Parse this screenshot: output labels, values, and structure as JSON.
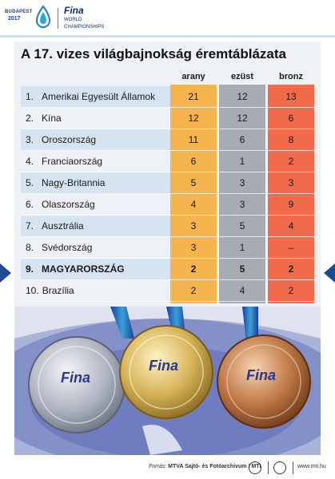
{
  "header": {
    "budapest_text": "BUDAPEST",
    "year_text": "2017",
    "fina_text": "Fina",
    "championships_line1": "WORLD",
    "championships_line2": "CHAMPIONSHIPS"
  },
  "title": "A 17. vizes világbajnokság éremtáblázata",
  "columns": {
    "gold": "arany",
    "silver": "ezüst",
    "bronze": "bronz"
  },
  "colors": {
    "gold": "#f6b44f",
    "silver": "#a7acb2",
    "bronze": "#f06a4b",
    "stripe": "#d6e4f1",
    "accent": "#1c4b93"
  },
  "rows": [
    {
      "rank": "1.",
      "country": "Amerikai Egyesült Államok",
      "gold": "21",
      "silver": "12",
      "bronze": "13"
    },
    {
      "rank": "2.",
      "country": "Kína",
      "gold": "12",
      "silver": "12",
      "bronze": "6"
    },
    {
      "rank": "3.",
      "country": "Oroszország",
      "gold": "11",
      "silver": "6",
      "bronze": "8"
    },
    {
      "rank": "4.",
      "country": "Franciaország",
      "gold": "6",
      "silver": "1",
      "bronze": "2"
    },
    {
      "rank": "5.",
      "country": "Nagy-Britannia",
      "gold": "5",
      "silver": "3",
      "bronze": "3"
    },
    {
      "rank": "6.",
      "country": "Olaszország",
      "gold": "4",
      "silver": "3",
      "bronze": "9"
    },
    {
      "rank": "7.",
      "country": "Ausztrália",
      "gold": "3",
      "silver": "5",
      "bronze": "4"
    },
    {
      "rank": "8.",
      "country": "Svédország",
      "gold": "3",
      "silver": "1",
      "bronze": "–"
    },
    {
      "rank": "9.",
      "country": "MAGYARORSZÁG",
      "gold": "2",
      "silver": "5",
      "bronze": "2"
    },
    {
      "rank": "10.",
      "country": "Brazília",
      "gold": "2",
      "silver": "4",
      "bronze": "2"
    }
  ],
  "medal_logo_text": "Fina",
  "footer": {
    "source_label": "Forrás:",
    "source_value": "MTVA Sajtó- és Fotóarchívum / MTI",
    "url": "www.mti.hu"
  }
}
